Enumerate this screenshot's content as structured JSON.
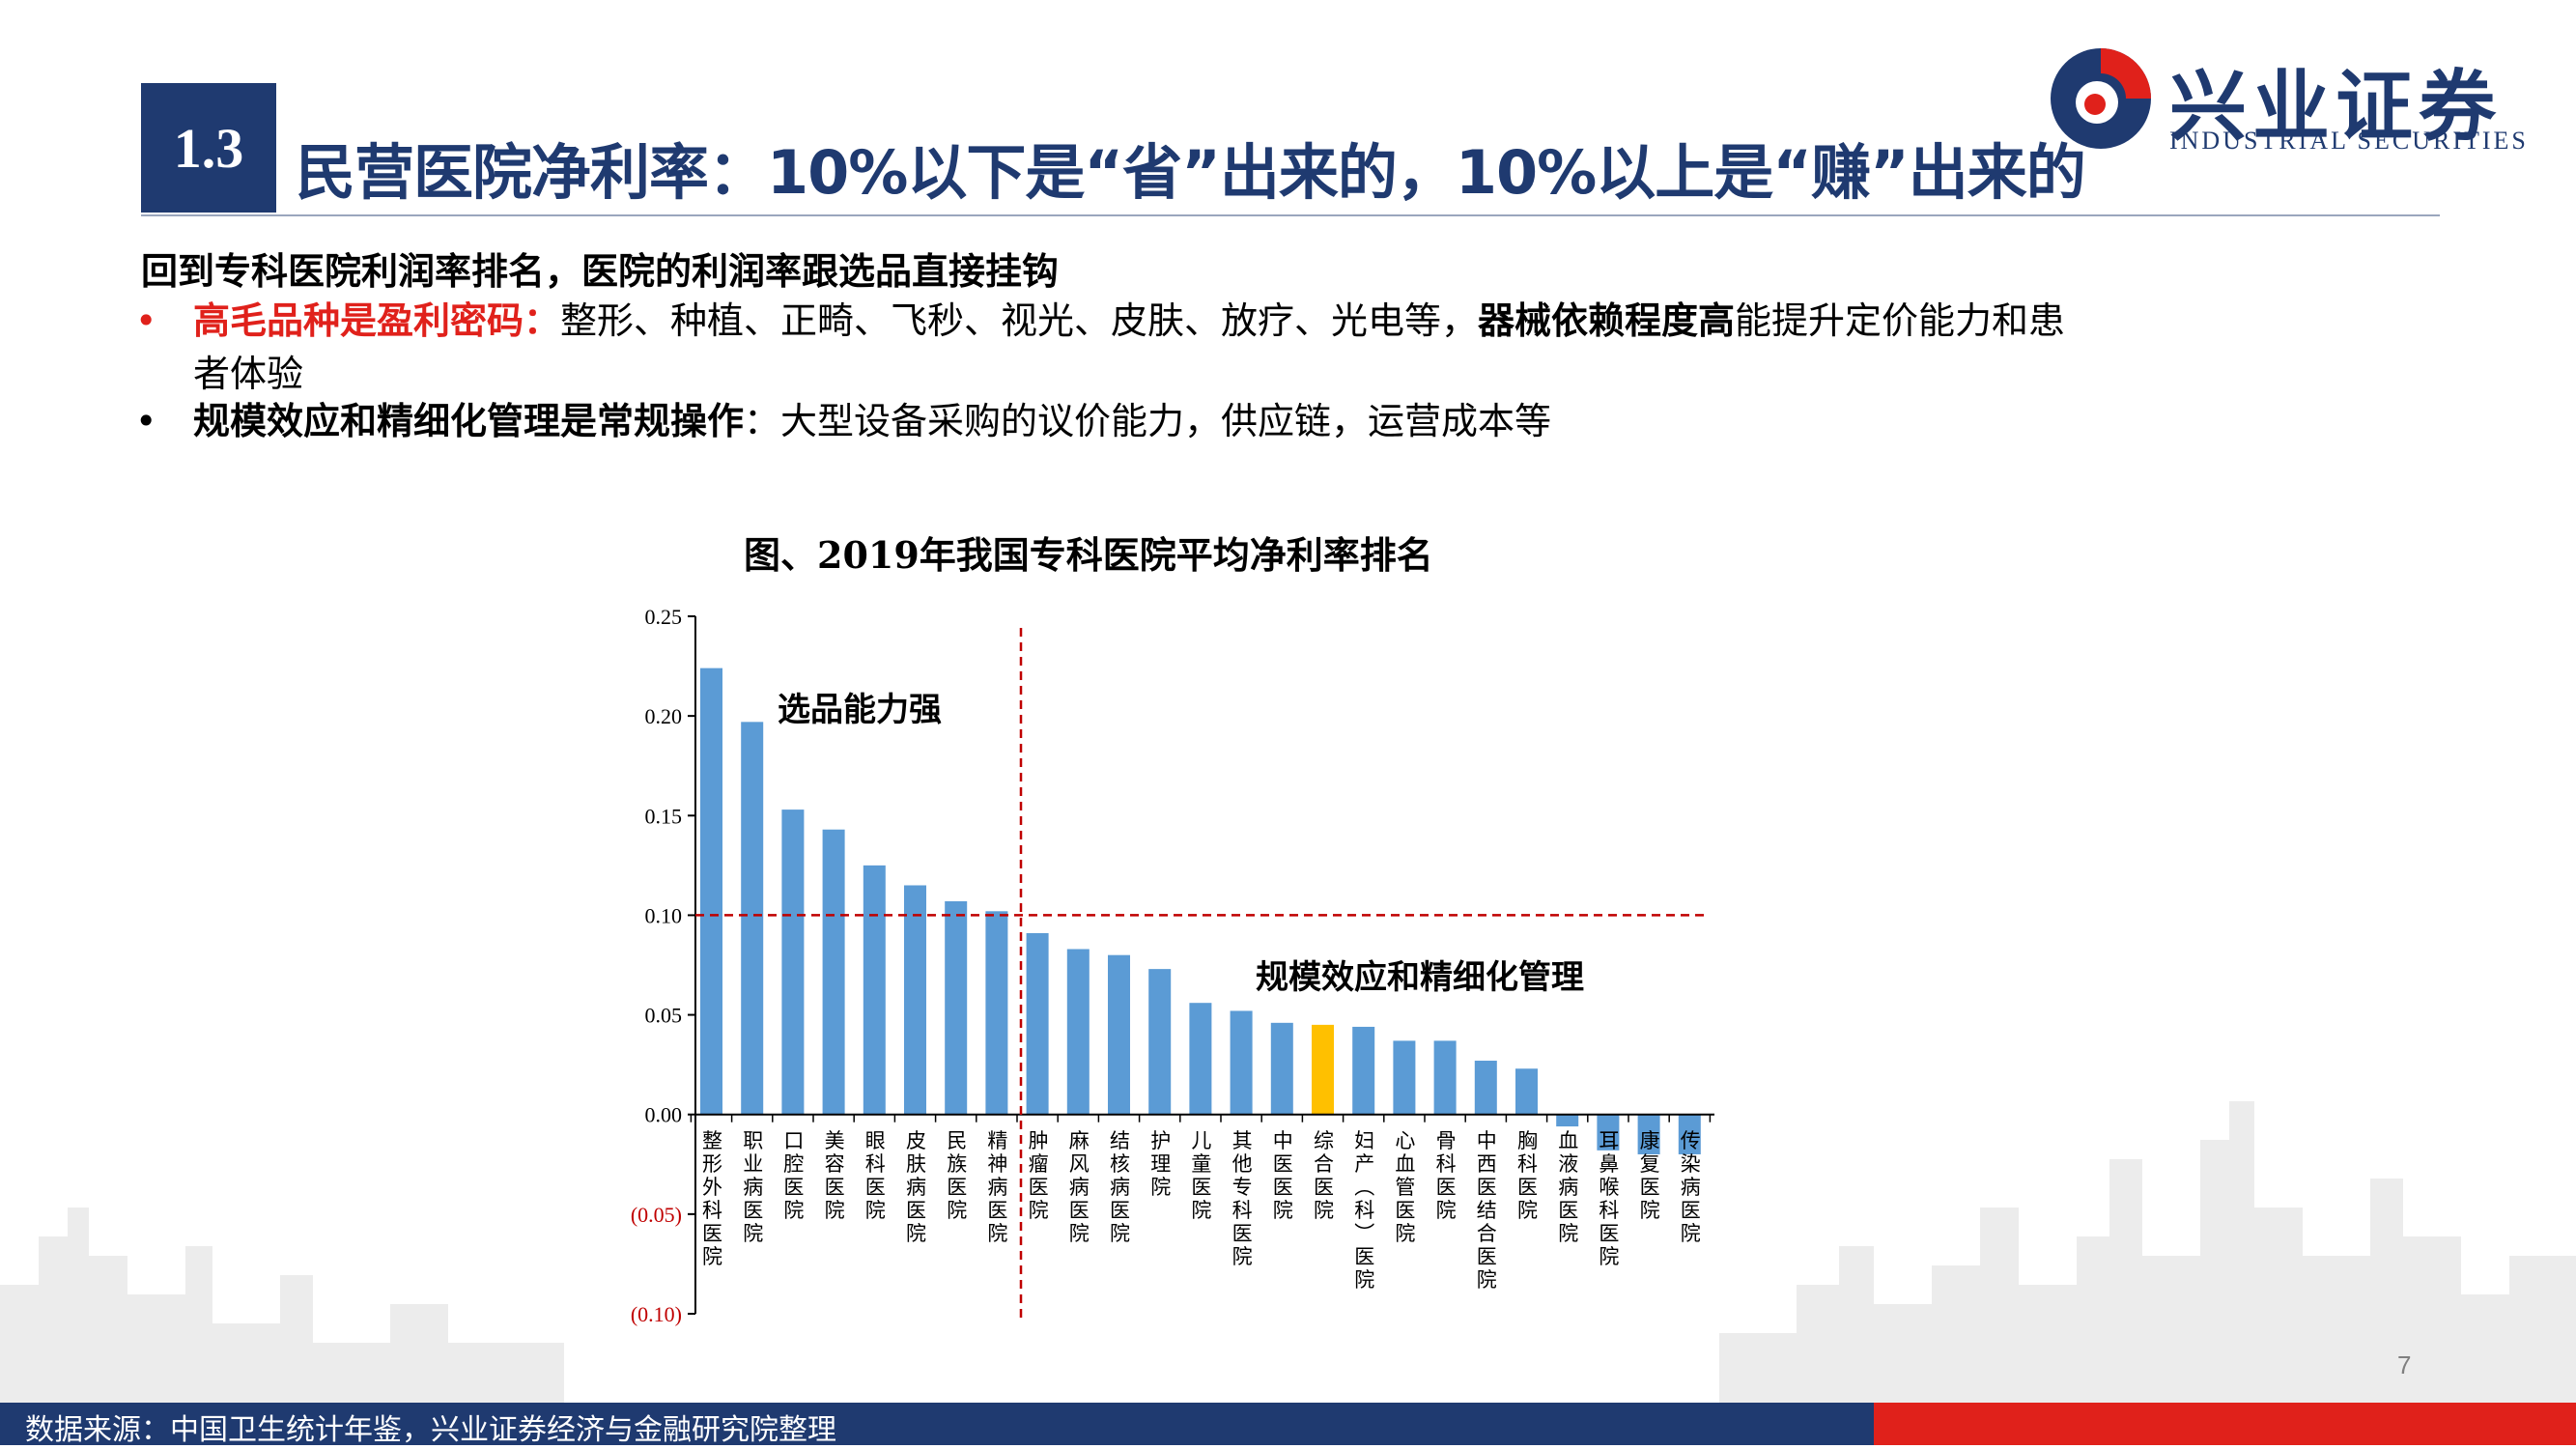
{
  "header": {
    "section_number": "1.3",
    "title": "民营医院净利率：10%以下是“省”出来的，10%以上是“赚”出来的",
    "logo_name": "兴业证券",
    "logo_en": "INDUSTRIAL SECURITIES"
  },
  "content": {
    "intro": "回到专科医院利润率排名，医院的利润率跟选品直接挂钩",
    "bullet1": {
      "lead": "高毛品种是盈利密码：",
      "text": "整形、种植、正畸、飞秒、视光、皮肤、放疗、光电等，",
      "bold": "器械依赖程度高",
      "tail": "能提升定价能力和患",
      "cont": "者体验"
    },
    "bullet2": {
      "lead": "规模效应和精细化管理是常规操作",
      "text": "：大型设备采购的议价能力，供应链，运营成本等"
    }
  },
  "chart_data": {
    "type": "bar",
    "title": "图、2019年我国专科医院平均净利率排名",
    "categories": [
      "整形外科医院",
      "职业病医院",
      "口腔医院",
      "美容医院",
      "眼科医院",
      "皮肤病医院",
      "民族医院",
      "精神病医院",
      "肿瘤医院",
      "麻风病医院",
      "结核病医院",
      "护理院",
      "儿童医院",
      "其他专科医院",
      "中医医院",
      "综合医院",
      "妇产（科）医院",
      "心血管医院",
      "骨科医院",
      "中西医结合医院",
      "胸科医院",
      "血液病医院",
      "耳鼻喉科医院",
      "康复医院",
      "传染病医院"
    ],
    "values": [
      0.224,
      0.197,
      0.153,
      0.143,
      0.125,
      0.115,
      0.107,
      0.102,
      0.091,
      0.083,
      0.08,
      0.073,
      0.056,
      0.052,
      0.046,
      0.045,
      0.044,
      0.037,
      0.037,
      0.027,
      0.023,
      -0.006,
      -0.018,
      -0.02,
      -0.02
    ],
    "highlight_index": 15,
    "ylim": [
      -0.1,
      0.25
    ],
    "yticks": [
      "(0.10)",
      "(0.05)",
      "0.00",
      "0.05",
      "0.10",
      "0.15",
      "0.20",
      "0.25"
    ],
    "ytick_values": [
      -0.1,
      -0.05,
      0.0,
      0.05,
      0.1,
      0.15,
      0.2,
      0.25
    ],
    "reference_y": 0.1,
    "annotations": [
      "选品能力强",
      "规模效应和精细化管理"
    ],
    "colors": {
      "bar": "#5b9bd5",
      "highlight": "#ffc000",
      "reference": "#c00000",
      "negative_tick": "#c00000"
    }
  },
  "footer": {
    "source": "数据来源：中国卫生统计年鉴，兴业证券经济与金融研究院整理",
    "page": "7"
  }
}
